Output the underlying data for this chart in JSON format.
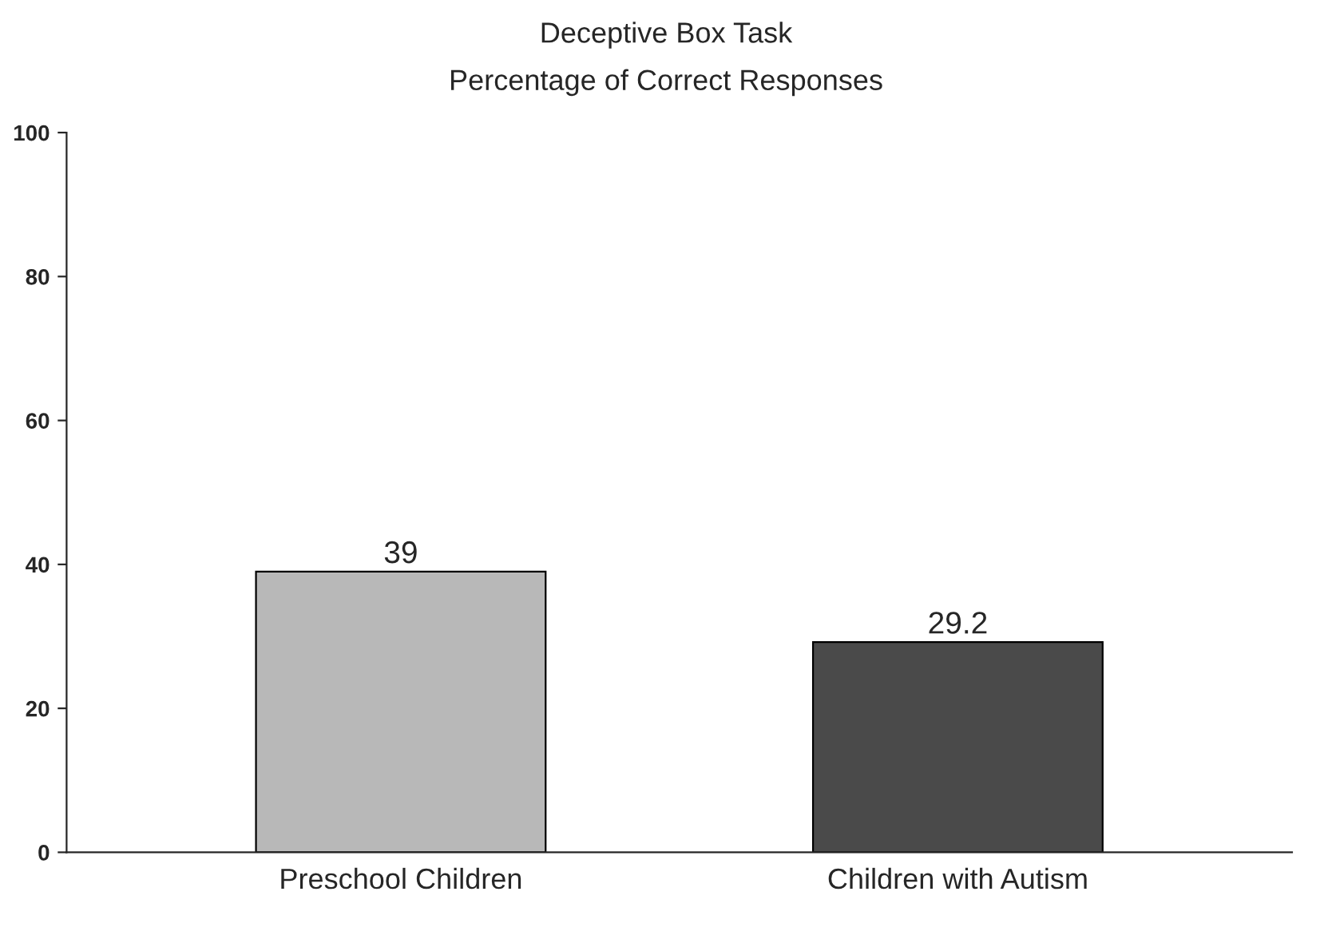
{
  "chart_data": {
    "type": "bar",
    "title": "Deceptive Box Task",
    "subtitle": "Percentage of Correct Responses",
    "categories": [
      "Preschool Children",
      "Children with Autism"
    ],
    "values": [
      39,
      29.2
    ],
    "colors": [
      "#b8b8b8",
      "#4a4a4a"
    ],
    "ylim": [
      0,
      100
    ],
    "yticks": [
      0,
      20,
      40,
      60,
      80,
      100
    ],
    "data_labels": true,
    "grid": false,
    "legend": false
  }
}
